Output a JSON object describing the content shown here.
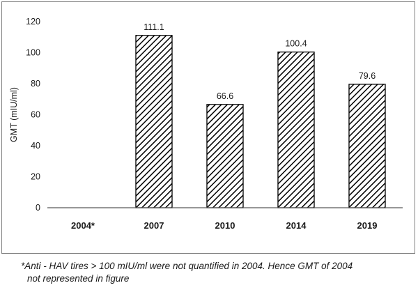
{
  "chart_data": {
    "type": "bar",
    "categories": [
      "2004*",
      "2007",
      "2010",
      "2014",
      "2019"
    ],
    "values": [
      null,
      111.1,
      66.6,
      100.4,
      79.6
    ],
    "data_labels": [
      "",
      "111.1",
      "66.6",
      "100.4",
      "79.6"
    ],
    "title": "",
    "xlabel": "",
    "ylabel": "GMT (mIU/ml)",
    "ylim": [
      0,
      120
    ],
    "yticks": [
      0,
      20,
      40,
      60,
      80,
      100,
      120
    ],
    "grid": false,
    "bar_pattern": "diagonal-hatch",
    "colors": {
      "bar_stroke": "#000000",
      "hatch": "#000000",
      "axis": "#595959"
    }
  },
  "footnote": {
    "line1": "*Anti - HAV tires > 100 mIU/ml were not quantified in 2004. Hence GMT of 2004",
    "line2": "not represented  in figure"
  }
}
